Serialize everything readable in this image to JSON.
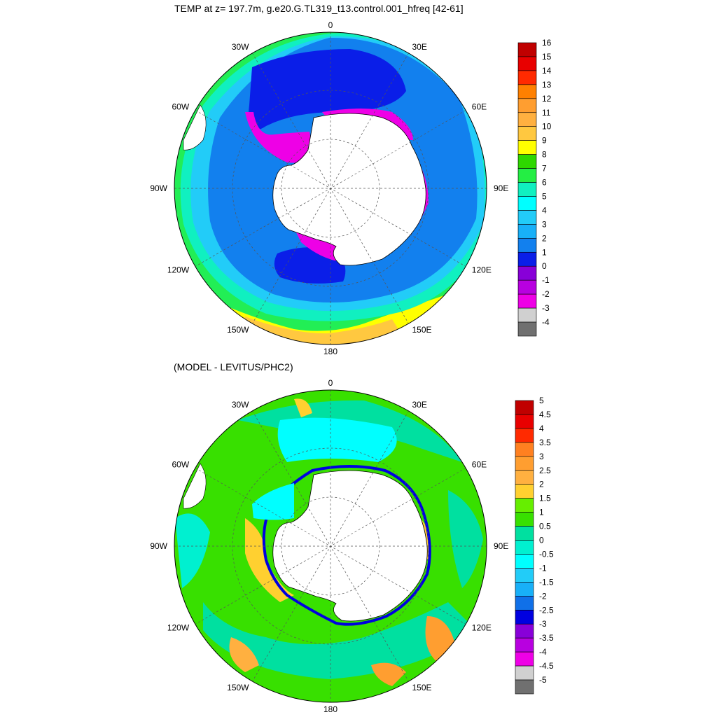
{
  "panels": [
    {
      "title": "TEMP at z= 197.7m, g.e20.G.TL319_t13.control.001_hfreq [42-61]",
      "lon_labels": [
        "0",
        "30E",
        "60E",
        "90E",
        "120E",
        "150E",
        "180",
        "150W",
        "120W",
        "90W",
        "60W",
        "30W"
      ],
      "colorbar": {
        "labels": [
          "16",
          "15",
          "14",
          "13",
          "12",
          "11",
          "10",
          "9",
          "8",
          "7",
          "6",
          "5",
          "4",
          "3",
          "2",
          "1",
          "0",
          "-1",
          "-2",
          "-3",
          "-4"
        ],
        "colors": [
          "#c00000",
          "#e80000",
          "#ff2a00",
          "#ff8000",
          "#ff9e30",
          "#ffb040",
          "#ffc840",
          "#ffff00",
          "#2ed800",
          "#24ee44",
          "#10f0c0",
          "#00ffff",
          "#22ccf8",
          "#18b0f8",
          "#1280ee",
          "#0a1ee8",
          "#8800d8",
          "#b800e0",
          "#ee00e6",
          "#d0d0d0",
          "#707070"
        ]
      }
    },
    {
      "title": "(MODEL - LEVITUS/PHC2)",
      "lon_labels": [
        "0",
        "30E",
        "60E",
        "90E",
        "120E",
        "150E",
        "180",
        "150W",
        "120W",
        "90W",
        "60W",
        "30W"
      ],
      "colorbar": {
        "labels": [
          "5",
          "4.5",
          "4",
          "3.5",
          "3",
          "2.5",
          "2",
          "1.5",
          "1",
          "0.5",
          "0",
          "-0.5",
          "-1",
          "-1.5",
          "-2",
          "-2.5",
          "-3",
          "-3.5",
          "-4",
          "-4.5",
          "-5"
        ],
        "colors": [
          "#c00000",
          "#e80000",
          "#ff2a00",
          "#ff8020",
          "#ff9e30",
          "#ffb040",
          "#ffd030",
          "#66ee00",
          "#38e000",
          "#00e0a0",
          "#00f0d0",
          "#00ffff",
          "#22ccf8",
          "#18b0f8",
          "#1070e8",
          "#0000e0",
          "#8800d8",
          "#b800e0",
          "#ee00e6",
          "#d0d0d0",
          "#707070"
        ]
      }
    }
  ]
}
